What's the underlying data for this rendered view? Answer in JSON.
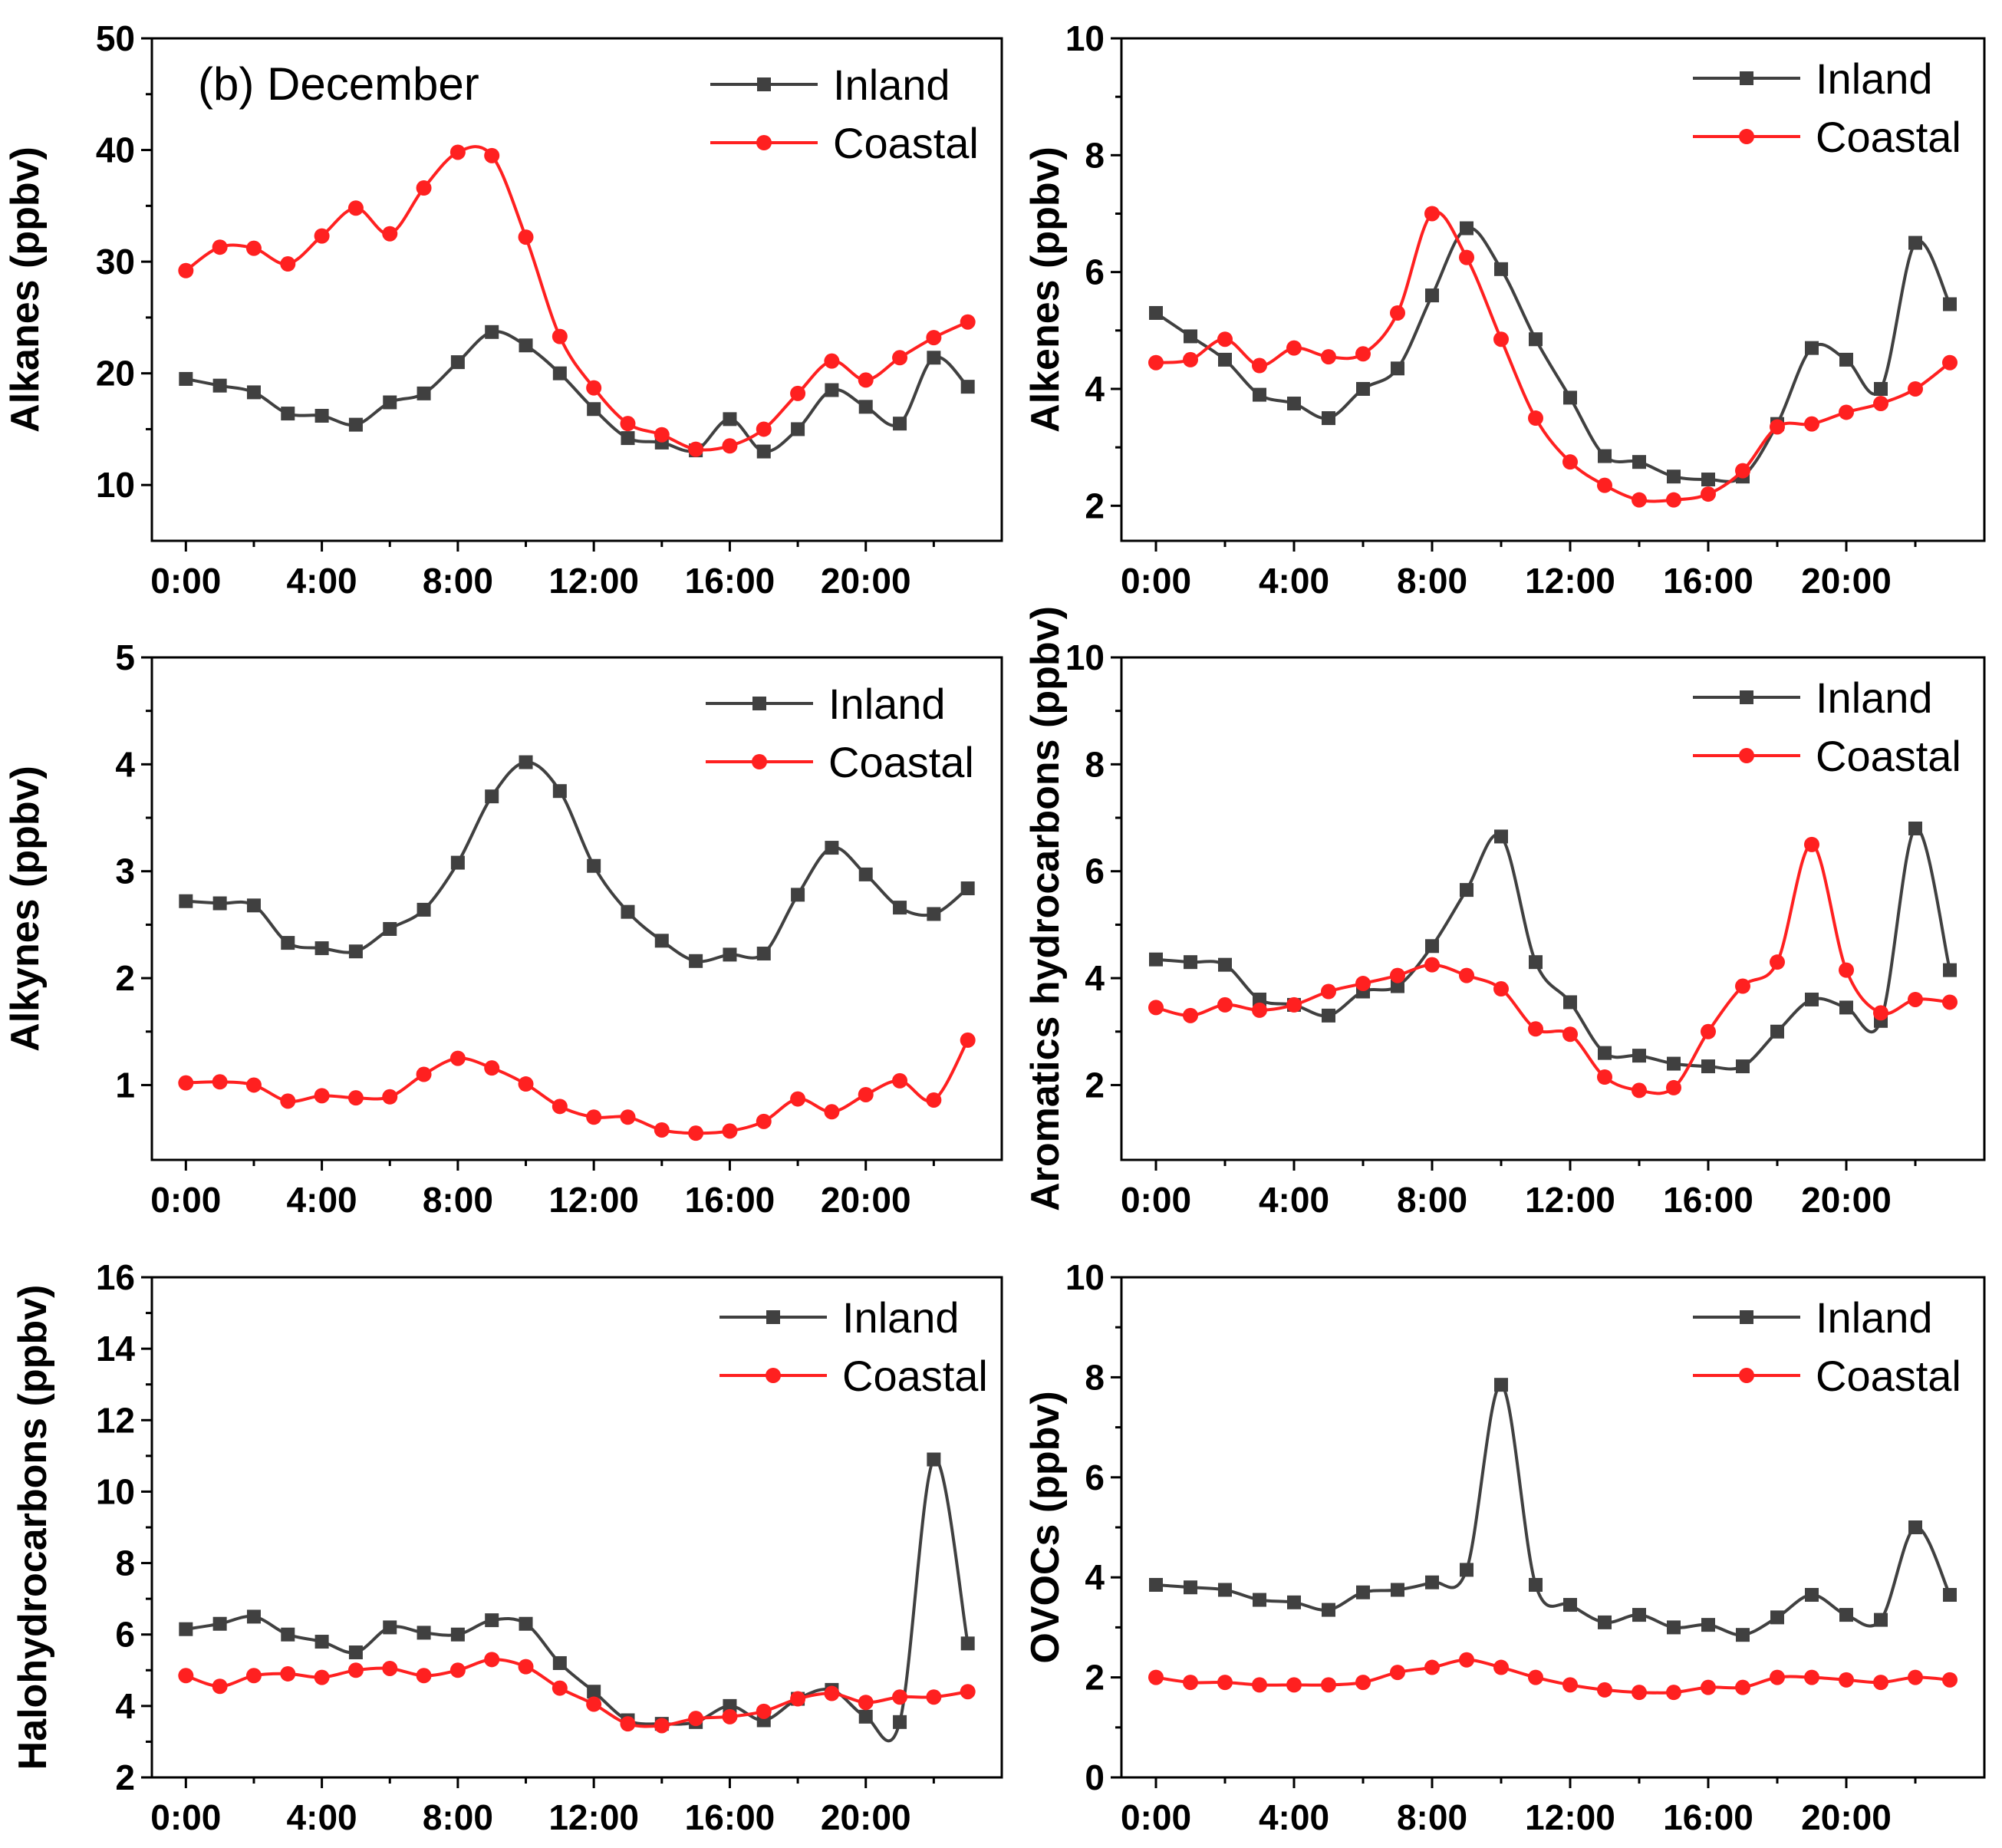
{
  "chart_data": [
    {
      "type": "line",
      "title": "(b) December",
      "xlabel": "",
      "ylabel": "Alkanes (ppbv)",
      "x": [
        0,
        1,
        2,
        3,
        4,
        5,
        6,
        7,
        8,
        9,
        10,
        11,
        12,
        13,
        14,
        15,
        16,
        17,
        18,
        19,
        20,
        21,
        22,
        23
      ],
      "xlim": [
        -1,
        24
      ],
      "xticks": [
        0,
        4,
        8,
        12,
        16,
        20
      ],
      "xtick_labels": [
        "0:00",
        "4:00",
        "8:00",
        "12:00",
        "16:00",
        "20:00"
      ],
      "ylim": [
        5,
        50
      ],
      "yticks": [
        10,
        20,
        30,
        40,
        50
      ],
      "ytick_labels": [
        "10",
        "20",
        "30",
        "40",
        "50"
      ],
      "legend": "top-right",
      "series": [
        {
          "name": "Inland",
          "color": "#404040",
          "marker": "square",
          "values": [
            19.5,
            18.9,
            18.3,
            16.4,
            16.2,
            15.4,
            17.4,
            18.2,
            21.0,
            23.7,
            22.5,
            20.0,
            16.8,
            14.2,
            13.8,
            13.1,
            15.9,
            13.0,
            15.0,
            18.5,
            17.0,
            15.5,
            21.4,
            18.8
          ]
        },
        {
          "name": "Coastal",
          "color": "#ff2020",
          "marker": "circle",
          "values": [
            29.2,
            31.3,
            31.2,
            29.8,
            32.3,
            34.8,
            32.5,
            36.6,
            39.8,
            39.5,
            32.2,
            23.3,
            18.7,
            15.5,
            14.5,
            13.2,
            13.5,
            15.0,
            18.2,
            21.1,
            19.4,
            21.4,
            23.2,
            24.6
          ]
        }
      ]
    },
    {
      "type": "line",
      "title": "",
      "xlabel": "",
      "ylabel": "Alkenes (ppbv)",
      "x": [
        0,
        1,
        2,
        3,
        4,
        5,
        6,
        7,
        8,
        9,
        10,
        11,
        12,
        13,
        14,
        15,
        16,
        17,
        18,
        19,
        20,
        21,
        22,
        23
      ],
      "xlim": [
        -1,
        24
      ],
      "xticks": [
        0,
        4,
        8,
        12,
        16,
        20
      ],
      "xtick_labels": [
        "0:00",
        "4:00",
        "8:00",
        "12:00",
        "16:00",
        "20:00"
      ],
      "ylim": [
        1.4,
        10
      ],
      "yticks": [
        2,
        4,
        6,
        8,
        10
      ],
      "ytick_labels": [
        "2",
        "4",
        "6",
        "8",
        "10"
      ],
      "legend": "top-right",
      "series": [
        {
          "name": "Inland",
          "color": "#404040",
          "marker": "square",
          "values": [
            5.3,
            4.9,
            4.5,
            3.9,
            3.75,
            3.5,
            4.0,
            4.35,
            5.6,
            6.75,
            6.05,
            4.85,
            3.85,
            2.85,
            2.75,
            2.5,
            2.45,
            2.5,
            3.4,
            4.7,
            4.5,
            4.0,
            6.5,
            5.45
          ]
        },
        {
          "name": "Coastal",
          "color": "#ff2020",
          "marker": "circle",
          "values": [
            4.45,
            4.5,
            4.85,
            4.4,
            4.7,
            4.55,
            4.6,
            5.3,
            7.0,
            6.25,
            4.85,
            3.5,
            2.75,
            2.35,
            2.1,
            2.1,
            2.2,
            2.6,
            3.35,
            3.4,
            3.6,
            3.75,
            4.0,
            4.45
          ]
        }
      ]
    },
    {
      "type": "line",
      "title": "",
      "xlabel": "",
      "ylabel": "Alkynes (ppbv)",
      "x": [
        0,
        1,
        2,
        3,
        4,
        5,
        6,
        7,
        8,
        9,
        10,
        11,
        12,
        13,
        14,
        15,
        16,
        17,
        18,
        19,
        20,
        21,
        22,
        23
      ],
      "xlim": [
        -1,
        24
      ],
      "xticks": [
        0,
        4,
        8,
        12,
        16,
        20
      ],
      "xtick_labels": [
        "0:00",
        "4:00",
        "8:00",
        "12:00",
        "16:00",
        "20:00"
      ],
      "ylim": [
        0.3,
        5
      ],
      "yticks": [
        1,
        2,
        3,
        4,
        5
      ],
      "ytick_labels": [
        "1",
        "2",
        "3",
        "4",
        "5"
      ],
      "legend": "top-right",
      "series": [
        {
          "name": "Inland",
          "color": "#404040",
          "marker": "square",
          "values": [
            2.72,
            2.7,
            2.68,
            2.33,
            2.28,
            2.25,
            2.46,
            2.64,
            3.08,
            3.7,
            4.02,
            3.75,
            3.05,
            2.62,
            2.35,
            2.16,
            2.22,
            2.23,
            2.78,
            3.22,
            2.97,
            2.66,
            2.6,
            2.84
          ]
        },
        {
          "name": "Coastal",
          "color": "#ff2020",
          "marker": "circle",
          "values": [
            1.02,
            1.03,
            1.0,
            0.85,
            0.9,
            0.88,
            0.89,
            1.1,
            1.25,
            1.16,
            1.01,
            0.8,
            0.7,
            0.7,
            0.58,
            0.55,
            0.57,
            0.66,
            0.87,
            0.75,
            0.91,
            1.04,
            0.86,
            1.42
          ]
        }
      ]
    },
    {
      "type": "line",
      "title": "",
      "xlabel": "",
      "ylabel": "Aromatics hydrocarbons (ppbv)",
      "x": [
        0,
        1,
        2,
        3,
        4,
        5,
        6,
        7,
        8,
        9,
        10,
        11,
        12,
        13,
        14,
        15,
        16,
        17,
        18,
        19,
        20,
        21,
        22,
        23
      ],
      "xlim": [
        -1,
        24
      ],
      "xticks": [
        0,
        4,
        8,
        12,
        16,
        20
      ],
      "xtick_labels": [
        "0:00",
        "4:00",
        "8:00",
        "12:00",
        "16:00",
        "20:00"
      ],
      "ylim": [
        0.6,
        10
      ],
      "yticks": [
        2,
        4,
        6,
        8,
        10
      ],
      "ytick_labels": [
        "2",
        "4",
        "6",
        "8",
        "10"
      ],
      "legend": "top-right",
      "series": [
        {
          "name": "Inland",
          "color": "#404040",
          "marker": "square",
          "values": [
            4.35,
            4.3,
            4.25,
            3.6,
            3.5,
            3.3,
            3.75,
            3.85,
            4.6,
            5.65,
            6.65,
            4.3,
            3.55,
            2.6,
            2.55,
            2.4,
            2.35,
            2.35,
            3.0,
            3.6,
            3.45,
            3.2,
            6.8,
            4.15
          ]
        },
        {
          "name": "Coastal",
          "color": "#ff2020",
          "marker": "circle",
          "values": [
            3.45,
            3.3,
            3.5,
            3.4,
            3.5,
            3.75,
            3.9,
            4.05,
            4.25,
            4.05,
            3.8,
            3.05,
            2.95,
            2.15,
            1.9,
            1.95,
            3.0,
            3.85,
            4.3,
            6.5,
            4.15,
            3.35,
            3.6,
            3.55
          ]
        }
      ]
    },
    {
      "type": "line",
      "title": "",
      "xlabel": "",
      "ylabel": "Halohydrocarbons (ppbv)",
      "x": [
        0,
        1,
        2,
        3,
        4,
        5,
        6,
        7,
        8,
        9,
        10,
        11,
        12,
        13,
        14,
        15,
        16,
        17,
        18,
        19,
        20,
        21,
        22,
        23
      ],
      "xlim": [
        -1,
        24
      ],
      "xticks": [
        0,
        4,
        8,
        12,
        16,
        20
      ],
      "xtick_labels": [
        "0:00",
        "4:00",
        "8:00",
        "12:00",
        "16:00",
        "20:00"
      ],
      "ylim": [
        2,
        16
      ],
      "yticks": [
        2,
        4,
        6,
        8,
        10,
        12,
        14,
        16
      ],
      "ytick_labels": [
        "2",
        "4",
        "6",
        "8",
        "10",
        "12",
        "14",
        "16"
      ],
      "legend": "top-right",
      "series": [
        {
          "name": "Inland",
          "color": "#404040",
          "marker": "square",
          "values": [
            6.15,
            6.3,
            6.5,
            6.0,
            5.8,
            5.5,
            6.2,
            6.05,
            6.0,
            6.4,
            6.3,
            5.2,
            4.4,
            3.6,
            3.5,
            3.55,
            4.0,
            3.6,
            4.2,
            4.45,
            3.7,
            3.55,
            10.9,
            5.75
          ]
        },
        {
          "name": "Coastal",
          "color": "#ff2020",
          "marker": "circle",
          "values": [
            4.85,
            4.55,
            4.85,
            4.9,
            4.8,
            5.0,
            5.05,
            4.85,
            5.0,
            5.3,
            5.1,
            4.5,
            4.05,
            3.5,
            3.45,
            3.65,
            3.7,
            3.85,
            4.2,
            4.35,
            4.1,
            4.25,
            4.25,
            4.4
          ]
        }
      ]
    },
    {
      "type": "line",
      "title": "",
      "xlabel": "",
      "ylabel": "OVOCs (ppbv)",
      "x": [
        0,
        1,
        2,
        3,
        4,
        5,
        6,
        7,
        8,
        9,
        10,
        11,
        12,
        13,
        14,
        15,
        16,
        17,
        18,
        19,
        20,
        21,
        22,
        23
      ],
      "xlim": [
        -1,
        24
      ],
      "xticks": [
        0,
        4,
        8,
        12,
        16,
        20
      ],
      "xtick_labels": [
        "0:00",
        "4:00",
        "8:00",
        "12:00",
        "16:00",
        "20:00"
      ],
      "ylim": [
        0,
        10
      ],
      "yticks": [
        0,
        2,
        4,
        6,
        8,
        10
      ],
      "ytick_labels": [
        "0",
        "2",
        "4",
        "6",
        "8",
        "10"
      ],
      "legend": "top-right",
      "series": [
        {
          "name": "Inland",
          "color": "#404040",
          "marker": "square",
          "values": [
            3.85,
            3.8,
            3.75,
            3.55,
            3.5,
            3.35,
            3.7,
            3.75,
            3.9,
            4.15,
            7.85,
            3.85,
            3.45,
            3.1,
            3.25,
            3.0,
            3.05,
            2.85,
            3.2,
            3.65,
            3.25,
            3.15,
            5.0,
            3.65
          ]
        },
        {
          "name": "Coastal",
          "color": "#ff2020",
          "marker": "circle",
          "values": [
            2.0,
            1.9,
            1.9,
            1.85,
            1.85,
            1.85,
            1.9,
            2.1,
            2.2,
            2.35,
            2.2,
            2.0,
            1.85,
            1.75,
            1.7,
            1.7,
            1.8,
            1.8,
            2.0,
            2.0,
            1.95,
            1.9,
            2.0,
            1.95
          ]
        }
      ]
    }
  ]
}
